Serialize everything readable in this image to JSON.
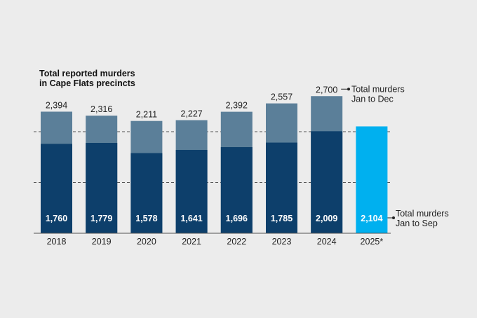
{
  "chart_data": {
    "type": "bar",
    "title": "Total reported murders in Cape Flats precincts",
    "title_lines": [
      "Total reported murders",
      "in Cape Flats precincts"
    ],
    "categories": [
      "2018",
      "2019",
      "2020",
      "2021",
      "2022",
      "2023",
      "2024",
      "2025*"
    ],
    "series": [
      {
        "name": "Total murders Jan to Sep",
        "values": [
          1760,
          1779,
          1578,
          1641,
          1696,
          1785,
          2009,
          2104
        ]
      },
      {
        "name": "Total murders Jan to Dec",
        "values": [
          2394,
          2316,
          2211,
          2227,
          2392,
          2557,
          2700,
          null
        ]
      }
    ],
    "value_labels_jan_sep": [
      "1,760",
      "1,779",
      "1,578",
      "1,641",
      "1,696",
      "1,785",
      "2,009",
      "2,104"
    ],
    "value_labels_jan_dec": [
      "2,394",
      "2,316",
      "2,211",
      "2,227",
      "2,392",
      "2,557",
      "2,700",
      ""
    ],
    "annotations": {
      "jan_dec": [
        "Total murders",
        "Jan to Dec"
      ],
      "jan_sep": [
        "Total murders",
        "Jan to Sep"
      ]
    },
    "ylim": [
      0,
      3000
    ],
    "reference_lines": [
      1000,
      2000
    ],
    "colors": {
      "jan_sep": "#0d3f6b",
      "jan_dec": "#5b7f99",
      "current_year": "#00b0ef",
      "background": "#ececec"
    }
  }
}
